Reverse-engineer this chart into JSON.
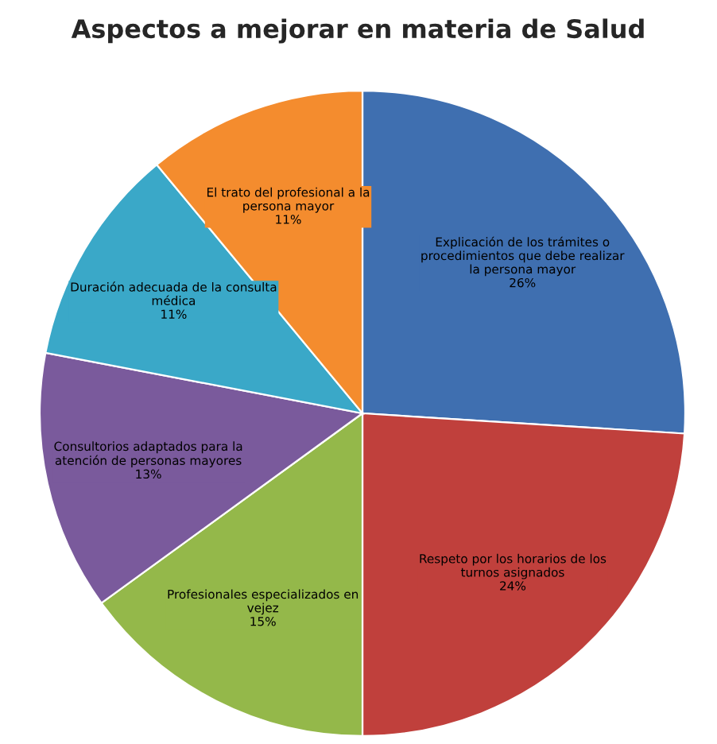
{
  "chart_data": {
    "type": "pie",
    "title": "Aspectos a mejorar en materia de Salud",
    "categories": [
      "Explicación de los trámites o\nprocedimientos que debe realizar\nla persona mayor",
      "Respeto por los horarios de los\nturnos asignados",
      "Profesionales especializados en\nvejez",
      "Consultorios adaptados para la\natención de personas mayores",
      "Duración adecuada de la consulta\nmédica",
      "El trato del profesional a la\npersona mayor"
    ],
    "values": [
      26,
      24,
      15,
      13,
      11,
      11
    ],
    "value_labels": [
      "26%",
      "24%",
      "15%",
      "13%",
      "11%",
      "11%"
    ],
    "colors": [
      "#3f6fb0",
      "#c0403c",
      "#94b84a",
      "#7a5a9c",
      "#3aa8c8",
      "#f48c2e"
    ],
    "legend": false
  }
}
